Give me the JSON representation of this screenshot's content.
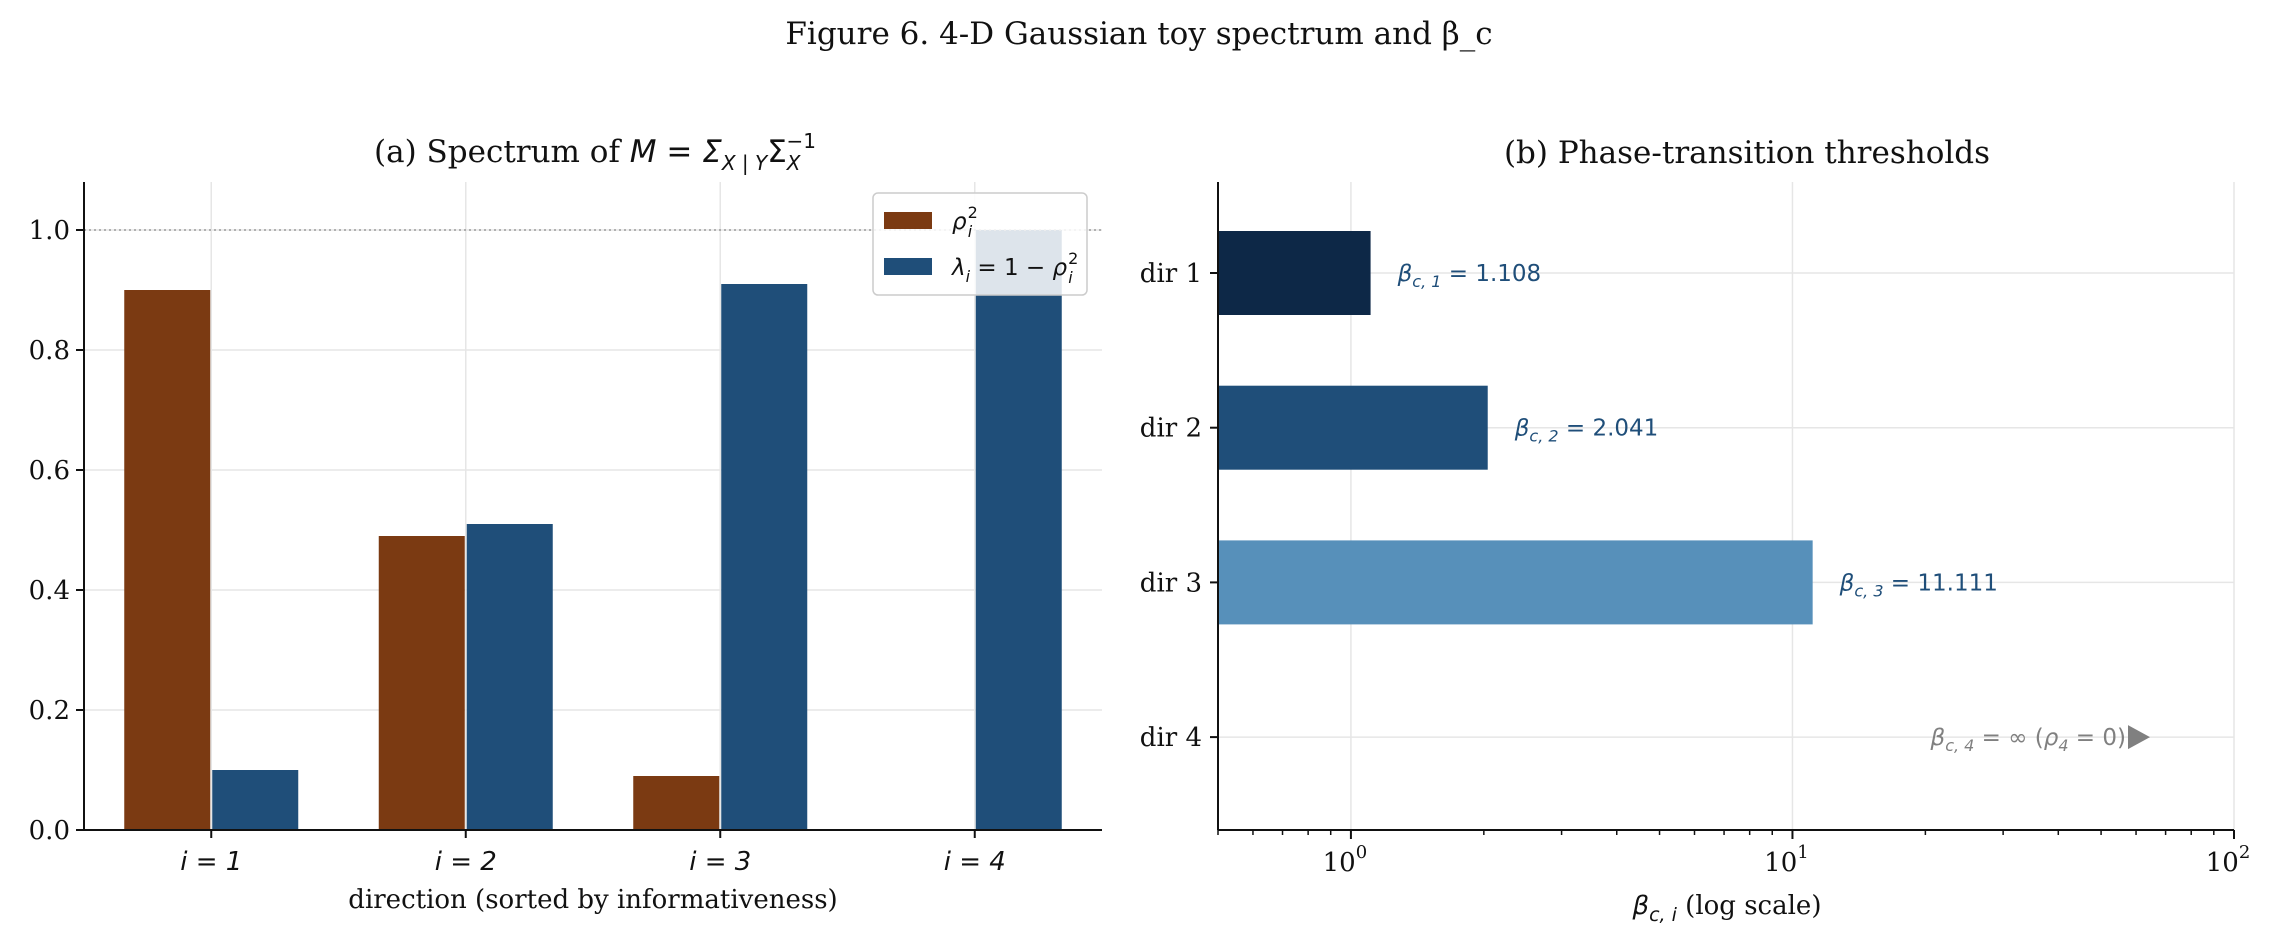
{
  "figure_title": "Figure 6. 4-D Gaussian toy spectrum and β_c",
  "chart_data": [
    {
      "type": "bar",
      "title": "(a) Spectrum of M = Σ_{X|Y} Σ_X^{-1}",
      "title_parts": {
        "prefix": "(a) Spectrum of ",
        "math": "M = Σ",
        "sub1": "X | Y",
        "mid": "Σ",
        "sub2": "X",
        "sup2": "−1"
      },
      "xlabel": "direction (sorted by informativeness)",
      "ylabel": "",
      "categories": [
        "i = 1",
        "i = 2",
        "i = 3",
        "i = 4"
      ],
      "ylim": [
        0,
        1.08
      ],
      "yticks": [
        0.0,
        0.2,
        0.4,
        0.6,
        0.8,
        1.0
      ],
      "ytick_labels": [
        "0.0",
        "0.2",
        "0.4",
        "0.6",
        "0.8",
        "1.0"
      ],
      "reference_line": 1.0,
      "grid": true,
      "legend_position": "top-right",
      "series": [
        {
          "name": "ρ_i^2",
          "name_parts": {
            "base": "ρ",
            "sub": "i",
            "sup": "2"
          },
          "color": "#7b3a12",
          "values": [
            0.9,
            0.49,
            0.09,
            0.0
          ]
        },
        {
          "name": "λ_i = 1 − ρ_i^2",
          "name_parts": {
            "base": "λ",
            "sub": "i",
            "rest": " = 1 − ",
            "base2": "ρ",
            "sub2": "i",
            "sup2": "2"
          },
          "color": "#1f4e79",
          "values": [
            0.1,
            0.51,
            0.91,
            1.0
          ]
        }
      ]
    },
    {
      "type": "bar",
      "orientation": "horizontal",
      "title": "(b) Phase-transition thresholds",
      "xlabel": "β_{c,i}  (log scale)",
      "xlabel_parts": {
        "base": "β",
        "sub": "c, i",
        "rest": "  (log scale)"
      },
      "ylabel": "",
      "categories": [
        "dir 1",
        "dir 2",
        "dir 3",
        "dir 4"
      ],
      "x_scale": "log",
      "xlim": [
        0.5,
        100
      ],
      "xticks": [
        1,
        10,
        100
      ],
      "xtick_labels": [
        {
          "base": "10",
          "exp": "0"
        },
        {
          "base": "10",
          "exp": "1"
        },
        {
          "base": "10",
          "exp": "2"
        }
      ],
      "grid": true,
      "values": [
        1.108,
        2.041,
        11.111,
        null
      ],
      "colors": [
        "#0d2847",
        "#1f4e79",
        "#5790ba"
      ],
      "annotations": [
        {
          "base": "β",
          "sub": "c, 1",
          "text": " = 1.108"
        },
        {
          "base": "β",
          "sub": "c, 2",
          "text": " = 2.041"
        },
        {
          "base": "β",
          "sub": "c, 3",
          "text": " = 11.111"
        },
        {
          "base": "β",
          "sub": "c, 4",
          "text": " = ∞  (",
          "base2": "ρ",
          "sub2": "4",
          "text2": " = 0)"
        }
      ],
      "annotation_color": "#1f4e79",
      "infinite_color": "#808080"
    }
  ]
}
